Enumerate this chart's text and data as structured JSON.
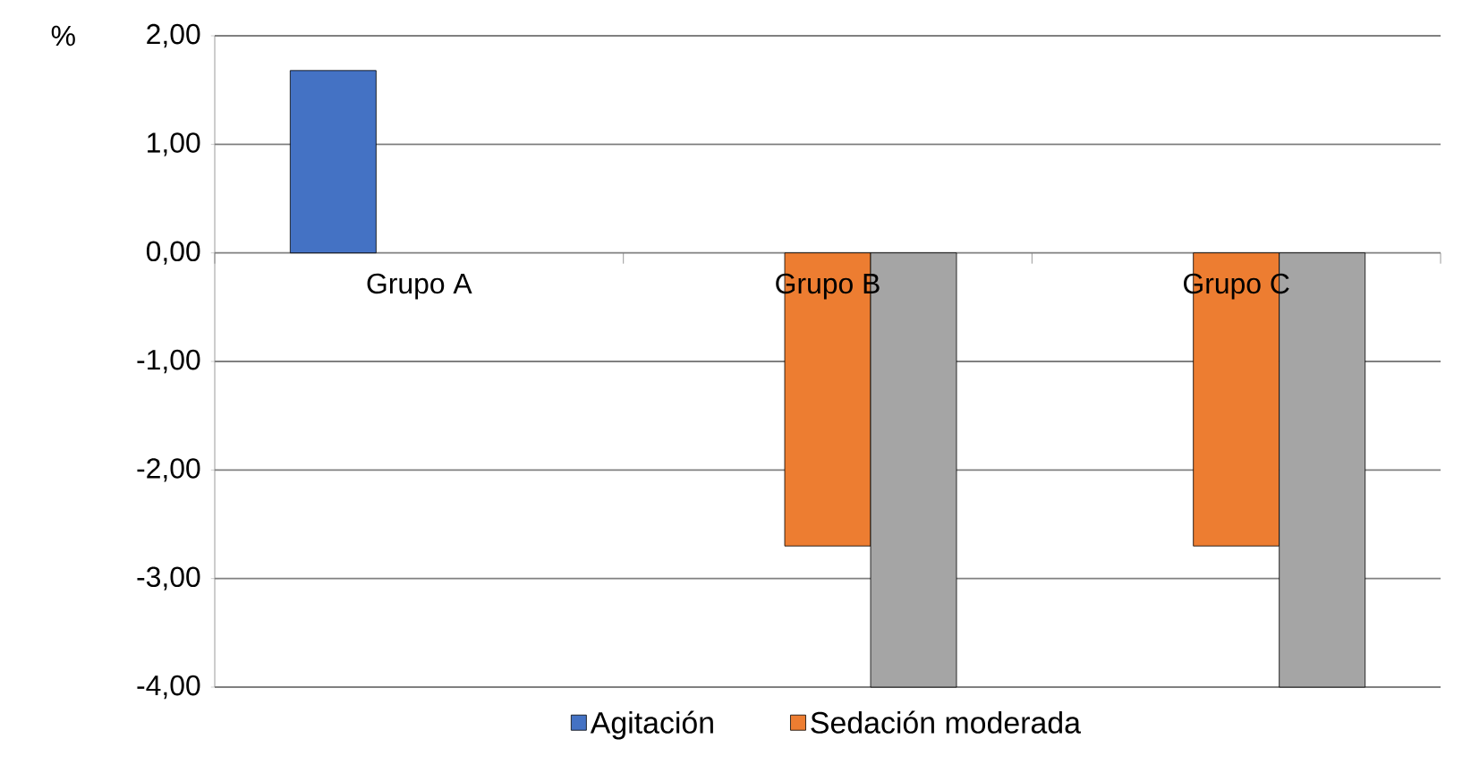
{
  "chart_data": {
    "type": "bar",
    "ylabel": "%",
    "categories": [
      "Grupo A",
      "Grupo B",
      "Grupo C"
    ],
    "series": [
      {
        "name": "Agitación",
        "color": "#4472c4",
        "values": [
          1.68,
          null,
          null
        ]
      },
      {
        "name": "Sedación moderada",
        "color": "#ed7d31",
        "values": [
          null,
          -2.7,
          -2.7
        ]
      },
      {
        "color": "#a5a5a5",
        "values": [
          null,
          -4.0,
          -4.0
        ]
      }
    ],
    "ylim": [
      -4,
      2
    ],
    "yticks": [
      {
        "value": -4,
        "label": "-4,00"
      },
      {
        "value": -3,
        "label": "-3,00"
      },
      {
        "value": -2,
        "label": "-2,00"
      },
      {
        "value": -1,
        "label": "-1,00"
      },
      {
        "value": 0,
        "label": "0,00"
      },
      {
        "value": 1,
        "label": "1,00"
      },
      {
        "value": 2,
        "label": "2,00"
      }
    ],
    "grid": "y",
    "legend": "bottom"
  }
}
